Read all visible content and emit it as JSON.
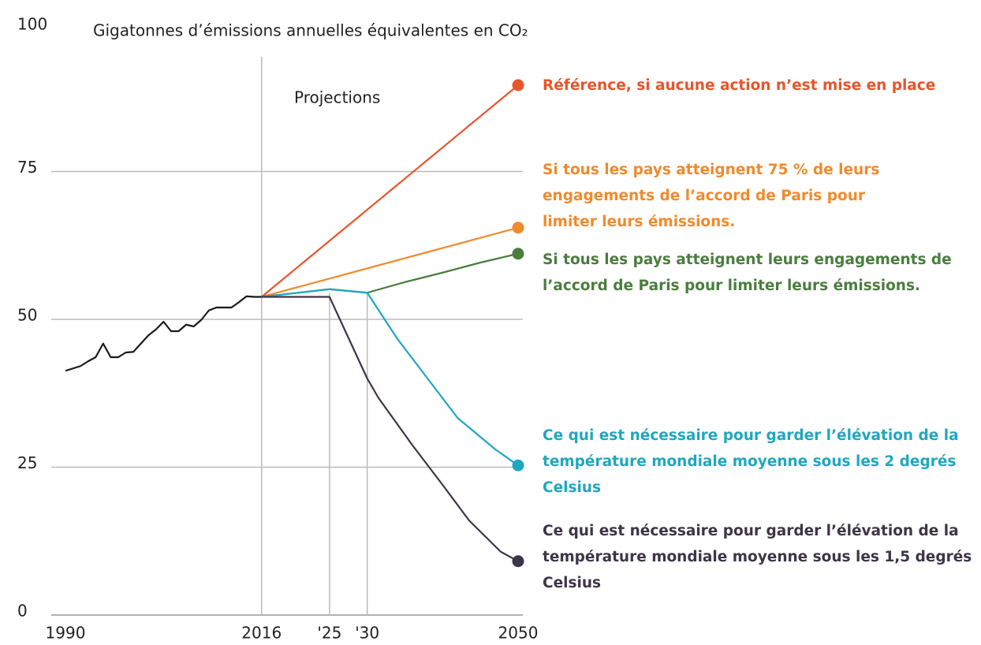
{
  "chart_data": {
    "type": "line",
    "title": "Gigatonnes d’émissions annuelles équivalentes en CO₂",
    "annotation": "Projections",
    "xlim": [
      1990,
      2050
    ],
    "xticks": [
      1990,
      2016,
      {
        "value": 2025,
        "label": "'25"
      },
      {
        "value": 2030,
        "label": "'30"
      },
      2050
    ],
    "ylim": [
      0,
      100
    ],
    "yticks": [
      0,
      25,
      50,
      75,
      100
    ],
    "grid": true,
    "series": [
      {
        "color": "#1a1a1a",
        "x": [
          1990,
          1991,
          1992,
          1993,
          1994,
          1995,
          1996,
          1997,
          1998,
          1999,
          2000,
          2001,
          2002,
          2003,
          2004,
          2005,
          2006,
          2007,
          2008,
          2009,
          2010,
          2011,
          2012,
          2013,
          2014,
          2015,
          2016
        ],
        "values": [
          41.3,
          41.7,
          42.1,
          42.9,
          43.6,
          45.9,
          43.6,
          43.6,
          44.4,
          44.5,
          45.9,
          47.3,
          48.3,
          49.6,
          48.0,
          48.0,
          49.1,
          48.8,
          49.9,
          51.5,
          52.0,
          52.0,
          52.0,
          52.9,
          53.9,
          53.8,
          53.8
        ]
      },
      {
        "name": "Référence, si aucune action n’est mise en place",
        "color": "#e8542b",
        "x": [
          2016,
          2050
        ],
        "values": [
          53.8,
          89.6
        ]
      },
      {
        "name": "Si tous les pays atteignent 75 % de leurs engagements de l’accord de Paris pour limiter leurs émissions.",
        "color": "#f08a2c",
        "x": [
          2016,
          2050
        ],
        "values": [
          53.8,
          65.5
        ]
      },
      {
        "name": "Si tous les pays atteignent leurs engagements de l’accord de Paris pour limiter leurs émissions.",
        "color": "#4a7d3e",
        "x": [
          2016,
          2025,
          2030,
          2035,
          2040,
          2045,
          2050
        ],
        "values": [
          53.8,
          55.1,
          54.5,
          56.3,
          57.9,
          59.6,
          61.1
        ]
      },
      {
        "name": "Ce qui est nécessaire pour garder l’élévation de la température mondiale moyenne sous les 2 degrés Celsius",
        "color": "#1fa7c0",
        "x": [
          2016,
          2025,
          2030,
          2034,
          2038,
          2042,
          2047,
          2050
        ],
        "values": [
          53.8,
          55.1,
          54.5,
          46.7,
          40.0,
          33.3,
          28.0,
          25.3
        ]
      },
      {
        "name": "Ce qui est nécessaire pour garder l’élévation de la température mondiale moyenne sous les 1,5 degrés Celsius",
        "color": "#3f3448",
        "x": [
          2016,
          2025,
          2030,
          2031.5,
          2036,
          2040,
          2043.5,
          2047.7,
          2050
        ],
        "values": [
          53.8,
          53.8,
          40.0,
          36.7,
          28.7,
          22.0,
          16.0,
          10.7,
          9.1
        ]
      }
    ]
  }
}
